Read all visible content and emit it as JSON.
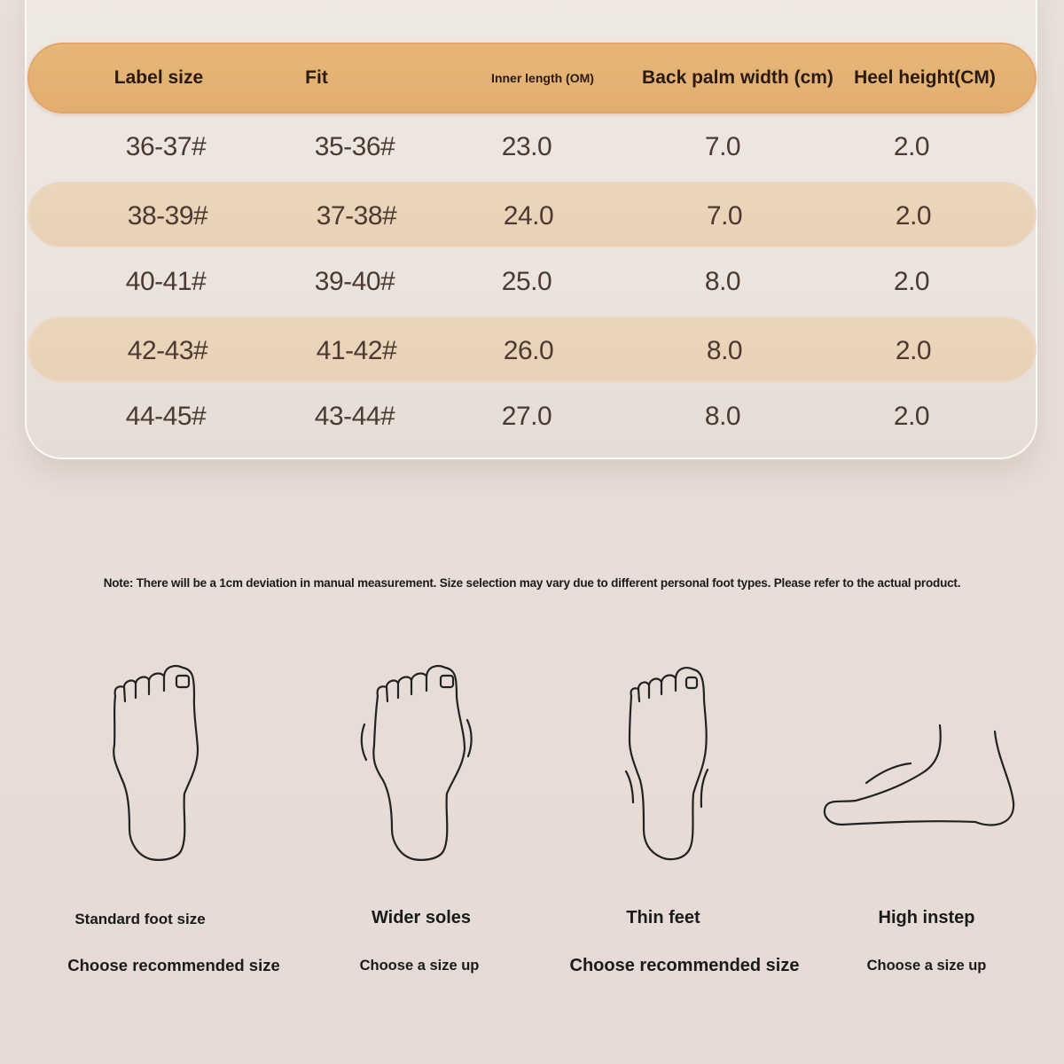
{
  "table": {
    "headers": [
      "Label size",
      "Fit",
      "Inner length (OM)",
      "Back palm width (cm)",
      "Heel height(CM)"
    ],
    "rows": [
      [
        "36-37#",
        "35-36#",
        "23.0",
        "7.0",
        "2.0"
      ],
      [
        "38-39#",
        "37-38#",
        "24.0",
        "7.0",
        "2.0"
      ],
      [
        "40-41#",
        "39-40#",
        "25.0",
        "8.0",
        "2.0"
      ],
      [
        "42-43#",
        "41-42#",
        "26.0",
        "8.0",
        "2.0"
      ],
      [
        "44-45#",
        "43-44#",
        "27.0",
        "8.0",
        "2.0"
      ]
    ],
    "header_color": "#e3b173",
    "stripe_color": "#e9d3b8"
  },
  "note": "Note: There will be a 1cm deviation in manual measurement. Size selection may vary due to different personal foot types. Please refer to the actual product.",
  "foot_types": [
    {
      "icon": "standard-foot-icon",
      "title": "Standard foot size",
      "advice": "Choose recommended size"
    },
    {
      "icon": "wide-foot-icon",
      "title": "Wider soles",
      "advice": "Choose a size up"
    },
    {
      "icon": "thin-foot-icon",
      "title": "Thin feet",
      "advice": "Choose recommended size"
    },
    {
      "icon": "high-instep-foot-icon",
      "title": "High instep",
      "advice": "Choose a size up"
    }
  ]
}
